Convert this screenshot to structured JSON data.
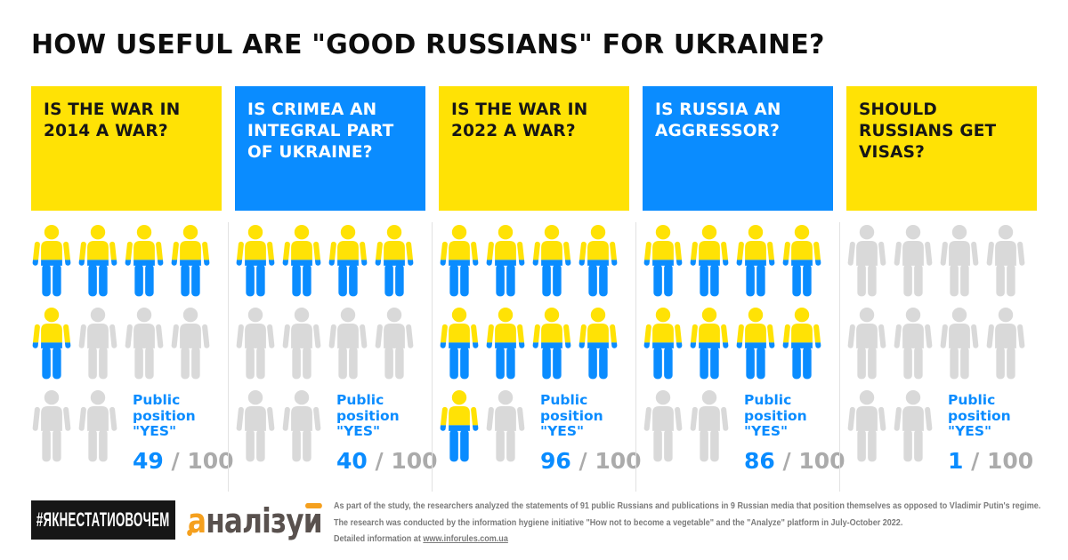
{
  "title": "HOW USEFUL ARE \"GOOD RUSSIANS\" FOR UKRAINE?",
  "colors": {
    "yellow": "#FFE205",
    "blue": "#0A8CFF",
    "figure_gray": "#D9D9D9",
    "score_gray": "#ABABAB",
    "badge_bg": "#161616",
    "logo_dark": "#59514E",
    "orange": "#F5A01E",
    "divider": "#E2E2E2",
    "footnote_gray": "#7B7B7B"
  },
  "columns": [
    {
      "question_lines": [
        "IS THE WAR IN",
        "2014 A WAR?"
      ],
      "header_color": "yellow",
      "score": 49,
      "score_total": 100,
      "figures_total": 10,
      "figures_colored": 5
    },
    {
      "question_lines": [
        "IS CRIMEA AN",
        "INTEGRAL PART",
        "OF UKRAINE?"
      ],
      "header_color": "blue",
      "score": 40,
      "score_total": 100,
      "figures_total": 10,
      "figures_colored": 4
    },
    {
      "question_lines": [
        "IS THE WAR IN",
        "2022 A WAR?"
      ],
      "header_color": "yellow",
      "score": 96,
      "score_total": 100,
      "figures_total": 10,
      "figures_colored": 9
    },
    {
      "question_lines": [
        "IS RUSSIA AN",
        "AGGRESSOR?"
      ],
      "header_color": "blue",
      "score": 86,
      "score_total": 100,
      "figures_total": 10,
      "figures_colored": 8
    },
    {
      "question_lines": [
        "SHOULD",
        "RUSSIANS GET",
        "VISAS?"
      ],
      "header_color": "yellow",
      "score": 1,
      "score_total": 100,
      "figures_total": 10,
      "figures_colored": 0
    }
  ],
  "result": {
    "label_lines": [
      "Public",
      "position",
      "\"YES\""
    ],
    "separator": "/"
  },
  "footer": {
    "hashtag": "#ЯКНЕСТАТИОВОЧЕМ",
    "logo_text": "аналізуй",
    "logo_parts": {
      "first": "а",
      "middle": "налізу",
      "last_base": "и"
    },
    "note_lines": [
      "As part of the study, the researchers analyzed the statements of 91 public Russians and publications in 9 Russian media that position themselves as opposed to Vladimir Putin's regime.",
      "The research was conducted by the information hygiene initiative \"How not to become a vegetable\" and the \"Analyze\" platform in July-October 2022."
    ],
    "link_prefix": "Detailed information at ",
    "link": "www.inforules.com.ua"
  },
  "chart_data": {
    "type": "bar",
    "categories": [
      "Is the war in 2014 a war?",
      "Is Crimea an integral part of Ukraine?",
      "Is the war in 2022 a war?",
      "Is Russia an aggressor?",
      "Should Russians get visas?"
    ],
    "values": [
      49,
      40,
      96,
      86,
      1
    ],
    "series_label": "Public position \"YES\"",
    "title": "HOW USEFUL ARE \"GOOD RUSSIANS\" FOR UKRAINE?",
    "xlabel": "",
    "ylabel": "Public position \"YES\" (out of 100)",
    "ylim": [
      0,
      100
    ],
    "grid": false,
    "legend_position": "none",
    "notes": "Pictogram (isotype) chart: 10 person icons per question, 1 icon = 10 points; yellow-blue icons = YES share, gray icons = remainder. Colored icons per column: 5, 4, 9, 8, 0."
  }
}
